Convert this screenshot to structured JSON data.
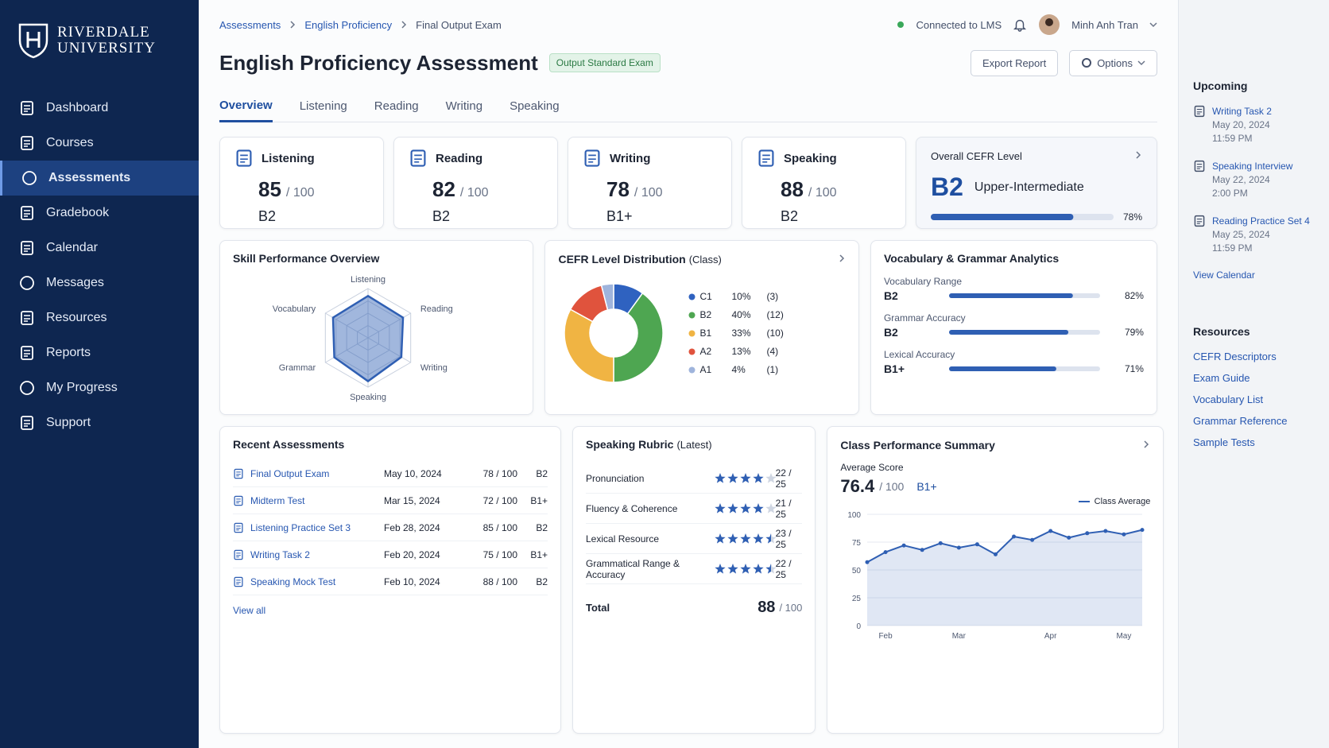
{
  "sidebar": {
    "logo": [
      "RIVERDALE",
      "UNIVERSITY"
    ],
    "nav": [
      {
        "label": "Dashboard"
      },
      {
        "label": "Courses"
      },
      {
        "label": "Assessments",
        "active": true
      },
      {
        "label": "Gradebook"
      },
      {
        "label": "Calendar"
      },
      {
        "label": "Messages"
      },
      {
        "label": "Resources"
      },
      {
        "label": "Reports"
      },
      {
        "label": "My Progress"
      },
      {
        "label": "Support"
      }
    ]
  },
  "breadcrumb": [
    "Assessments",
    "English Proficiency",
    "Final Output Exam"
  ],
  "status": "Connected to LMS",
  "user": "Minh Anh Tran",
  "header": {
    "title": "English Proficiency Assessment",
    "badge": "Output Standard Exam",
    "buttons": [
      "Export Report",
      "Options"
    ]
  },
  "tabs": [
    {
      "label": "Overview",
      "active": true
    },
    {
      "label": "Listening"
    },
    {
      "label": "Reading"
    },
    {
      "label": "Writing"
    },
    {
      "label": "Speaking"
    }
  ],
  "skills": [
    {
      "name": "Listening",
      "score": 85,
      "out_of": "/ 100",
      "level": "B2"
    },
    {
      "name": "Reading",
      "score": 82,
      "out_of": "/ 100",
      "level": "B2"
    },
    {
      "name": "Writing",
      "score": 78,
      "out_of": "/ 100",
      "level": "B1+"
    },
    {
      "name": "Speaking",
      "score": 88,
      "out_of": "/ 100",
      "level": "B2"
    }
  ],
  "overall": {
    "label": "Overall CEFR Level",
    "level": "B2",
    "description": "Upper-Intermediate",
    "progress": 78,
    "progress_label": "78%"
  },
  "radar": {
    "title": "Skill Performance Overview",
    "axes": [
      "Listening",
      "Reading",
      "Writing",
      "Speaking",
      "Grammar",
      "Vocabulary"
    ],
    "values": [
      85,
      82,
      78,
      88,
      79,
      82
    ],
    "rlim": [
      0,
      100
    ],
    "color": "#2f5fb3"
  },
  "distribution": {
    "title": "CEFR Level Distribution",
    "subtitle": "(Class)",
    "levels": [
      "C1",
      "B2",
      "B1",
      "A2",
      "A1"
    ],
    "values": [
      10,
      40,
      33,
      13,
      4
    ],
    "value_labels": [
      "10%",
      "40%",
      "33%",
      "13%",
      "4%"
    ],
    "counts": [
      "(3)",
      "(12)",
      "(10)",
      "(4)",
      "(1)"
    ],
    "colors": [
      "#2f62c0",
      "#4ea651",
      "#f0b443",
      "#e0533d",
      "#9fb4dc"
    ]
  },
  "analytics": {
    "title": "Vocabulary & Grammar Analytics",
    "items": [
      {
        "name": "Vocabulary Range",
        "level": "B2",
        "value": 82,
        "label": "82%"
      },
      {
        "name": "Grammar Accuracy",
        "level": "B2",
        "value": 79,
        "label": "79%"
      },
      {
        "name": "Lexical Accuracy",
        "level": "B1+",
        "value": 71,
        "label": "71%"
      }
    ]
  },
  "recent": {
    "title": "Recent Assessments",
    "rows": [
      [
        "Final Output Exam",
        "May 10, 2024",
        "78 / 100",
        "B2"
      ],
      [
        "Midterm Test",
        "Mar 15, 2024",
        "72 / 100",
        "B1+"
      ],
      [
        "Listening Practice Set 3",
        "Feb 28, 2024",
        "85 / 100",
        "B2"
      ],
      [
        "Writing Task 2",
        "Feb 20, 2024",
        "75 / 100",
        "B1+"
      ],
      [
        "Speaking Mock Test",
        "Feb 10, 2024",
        "88 / 100",
        "B2"
      ]
    ],
    "link": "View all"
  },
  "rubric": {
    "title": "Speaking Rubric",
    "subtitle": "(Latest)",
    "rows": [
      {
        "criterion": "Pronunciation",
        "stars": 4,
        "score": "22 / 25"
      },
      {
        "criterion": "Fluency & Coherence",
        "stars": 4,
        "score": "21 / 25"
      },
      {
        "criterion": "Lexical Resource",
        "stars": 4.5,
        "score": "23 / 25"
      },
      {
        "criterion": "Grammatical Range & Accuracy",
        "stars": 4.5,
        "score": "22 / 25"
      }
    ],
    "total_label": "Total",
    "total": 88,
    "total_out_of": "/ 100"
  },
  "performance": {
    "title": "Class Performance Summary",
    "average_label": "Average Score",
    "average": 76.4,
    "average_out_of": "/ 100",
    "level": "B1+",
    "chart": {
      "type": "area",
      "categories": [
        null,
        "Feb",
        null,
        null,
        null,
        "Mar",
        null,
        null,
        null,
        null,
        "Apr",
        null,
        null,
        null,
        "May",
        null
      ],
      "series": [
        {
          "name": "Class Average",
          "color": "#2f5fb3",
          "values": [
            57,
            66,
            72,
            68,
            74,
            70,
            73,
            64,
            80,
            77,
            85,
            79,
            83,
            85,
            82,
            86
          ]
        }
      ],
      "ylim": [
        0,
        100
      ],
      "yticks": [
        0,
        25,
        50,
        75,
        100
      ],
      "grid": true
    }
  },
  "upcoming": {
    "title": "Upcoming",
    "items": [
      {
        "title": "Writing Task 2",
        "date": "May 20, 2024",
        "time": "11:59 PM"
      },
      {
        "title": "Speaking Interview",
        "date": "May 22, 2024",
        "time": "2:00 PM"
      },
      {
        "title": "Reading Practice Set 4",
        "date": "May 25, 2024",
        "time": "11:59 PM"
      }
    ],
    "link": "View Calendar"
  },
  "resources": {
    "title": "Resources",
    "items": [
      "CEFR Descriptors",
      "Exam Guide",
      "Vocabulary List",
      "Grammar Reference",
      "Sample Tests"
    ]
  }
}
